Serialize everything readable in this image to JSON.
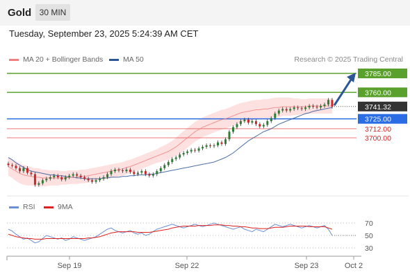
{
  "header": {
    "title": "Gold",
    "timeframe": "30 MIN"
  },
  "timestamp": "Tuesday, September 23, 2025 5:24:39 AM CET",
  "legend": {
    "bollinger": {
      "label": "MA 20 + Bollinger Bands",
      "color": "#f08080"
    },
    "ma50": {
      "label": "MA 50",
      "color": "#2c5596"
    },
    "credit": "Research © 2025 Trading Central"
  },
  "rsi_legend": {
    "rsi": {
      "label": "RSI",
      "color": "#6b8fd4"
    },
    "ma9": {
      "label": "9MA",
      "color": "#e01f1f"
    }
  },
  "chart_data": [
    {
      "type": "line",
      "name": "price",
      "x_ticks": [
        "Sep 19",
        "Sep 22",
        "Sep 23",
        "Oct 2"
      ],
      "price_levels": [
        {
          "label": "3785.00",
          "value": 3785,
          "kind": "target",
          "color": "#5aa02c"
        },
        {
          "label": "3760.00",
          "value": 3760,
          "kind": "resistance",
          "color": "#5aa02c"
        },
        {
          "label": "3741.32",
          "value": 3741.32,
          "kind": "last",
          "color": "#333333"
        },
        {
          "label": "3725.00",
          "value": 3725,
          "kind": "pivot",
          "color": "#2a6ce3"
        },
        {
          "label": "3712.00",
          "value": 3712,
          "kind": "support",
          "color": "#e01f1f"
        },
        {
          "label": "3700.00",
          "value": 3700,
          "kind": "support",
          "color": "#e01f1f"
        }
      ],
      "close": [
        3664,
        3663,
        3660,
        3656,
        3660,
        3654,
        3652,
        3638,
        3640,
        3644,
        3646,
        3648,
        3650,
        3648,
        3645,
        3648,
        3650,
        3652,
        3650,
        3648,
        3646,
        3644,
        3642,
        3644,
        3646,
        3648,
        3652,
        3656,
        3658,
        3657,
        3656,
        3658,
        3655,
        3652,
        3654,
        3656,
        3652,
        3650,
        3652,
        3656,
        3660,
        3664,
        3668,
        3672,
        3674,
        3678,
        3680,
        3682,
        3684,
        3683,
        3686,
        3688,
        3690,
        3689,
        3690,
        3694,
        3692,
        3698,
        3708,
        3714,
        3718,
        3722,
        3724,
        3720,
        3722,
        3718,
        3715,
        3717,
        3722,
        3726,
        3732,
        3736,
        3738,
        3736,
        3738,
        3740,
        3739,
        3738,
        3740,
        3742,
        3741,
        3740,
        3742,
        3744,
        3750,
        3741
      ],
      "ma50": [
        3674,
        3671,
        3667,
        3664,
        3661,
        3658,
        3656,
        3655,
        3654,
        3653,
        3652,
        3651,
        3651,
        3650,
        3650,
        3649,
        3648,
        3648,
        3647,
        3647,
        3646,
        3646,
        3646,
        3646,
        3646,
        3647,
        3647,
        3648,
        3648,
        3648,
        3649,
        3649,
        3650,
        3650,
        3651,
        3651,
        3651,
        3652,
        3652,
        3653,
        3654,
        3655,
        3656,
        3657,
        3658,
        3659,
        3660,
        3661,
        3662,
        3663,
        3664,
        3665,
        3666,
        3667,
        3668,
        3670,
        3672,
        3674,
        3677,
        3680,
        3684,
        3688,
        3692,
        3696,
        3699,
        3702,
        3705,
        3708,
        3710,
        3712,
        3715,
        3718,
        3720,
        3722,
        3724,
        3726,
        3728,
        3730,
        3732,
        3733,
        3735,
        3736,
        3737,
        3738,
        3739,
        3740
      ],
      "ma20": [
        3662,
        3659,
        3656,
        3653,
        3651,
        3650,
        3649,
        3648,
        3648,
        3647,
        3647,
        3647,
        3647,
        3647,
        3647,
        3647,
        3648,
        3648,
        3648,
        3649,
        3649,
        3650,
        3651,
        3652,
        3653,
        3654,
        3655,
        3656,
        3657,
        3658,
        3659,
        3661,
        3662,
        3664,
        3666,
        3668,
        3670,
        3672,
        3674,
        3676,
        3678,
        3680,
        3682,
        3685,
        3688,
        3692,
        3696,
        3700,
        3704,
        3708,
        3711,
        3714,
        3716,
        3718,
        3720,
        3722,
        3724,
        3725,
        3727,
        3729,
        3731,
        3733,
        3734,
        3735,
        3736,
        3737,
        3737,
        3738,
        3738,
        3739,
        3740,
        3740,
        3741,
        3741,
        3741,
        3741,
        3741,
        3741,
        3741,
        3742,
        3742,
        3742,
        3742,
        3742,
        3742,
        3742
      ],
      "bollinger_width": [
        12,
        12,
        13,
        13,
        13,
        13,
        12,
        12,
        12,
        11,
        11,
        10,
        10,
        10,
        9,
        9,
        9,
        9,
        9,
        9,
        9,
        9,
        9,
        9,
        9,
        9,
        9,
        9,
        9,
        9,
        9,
        9,
        9,
        9,
        9,
        9,
        9,
        9,
        9,
        9,
        10,
        10,
        11,
        11,
        12,
        13,
        13,
        13,
        13,
        13,
        13,
        13,
        13,
        13,
        13,
        13,
        13,
        13,
        13,
        13,
        13,
        13,
        13,
        13,
        13,
        13,
        13,
        13,
        13,
        13,
        13,
        13,
        12,
        12,
        12,
        11,
        11,
        10,
        10,
        10,
        10,
        10,
        10,
        10,
        10,
        10
      ],
      "y_range": [
        3630,
        3795
      ]
    },
    {
      "type": "line",
      "name": "rsi",
      "levels": [
        70,
        50,
        30
      ],
      "x_ticks": [
        "Sep 19",
        "Sep 22",
        "Sep 23",
        "Oct 2"
      ],
      "rsi": [
        60,
        57,
        52,
        48,
        44,
        46,
        42,
        38,
        40,
        45,
        50,
        48,
        46,
        44,
        46,
        42,
        44,
        48,
        46,
        44,
        42,
        44,
        46,
        48,
        52,
        56,
        60,
        62,
        58,
        56,
        54,
        56,
        58,
        54,
        52,
        54,
        50,
        52,
        56,
        60,
        62,
        64,
        66,
        68,
        66,
        64,
        62,
        64,
        66,
        68,
        66,
        64,
        66,
        68,
        70,
        68,
        66,
        64,
        62,
        60,
        62,
        64,
        60,
        58,
        56,
        60,
        58,
        56,
        60,
        64,
        68,
        66,
        64,
        66,
        68,
        66,
        64,
        62,
        64,
        66,
        64,
        62,
        64,
        66,
        60,
        50
      ],
      "ma9": [
        52,
        50,
        48,
        47,
        46,
        45,
        45,
        44,
        44,
        44,
        45,
        45,
        45,
        45,
        45,
        45,
        45,
        45,
        45,
        45,
        45,
        46,
        46,
        47,
        48,
        50,
        52,
        54,
        55,
        56,
        56,
        56,
        56,
        56,
        55,
        55,
        55,
        55,
        56,
        57,
        58,
        59,
        60,
        62,
        63,
        64,
        65,
        65,
        65,
        65,
        66,
        66,
        66,
        66,
        67,
        67,
        67,
        66,
        66,
        65,
        65,
        64,
        64,
        63,
        62,
        62,
        61,
        61,
        61,
        62,
        63,
        63,
        63,
        64,
        65,
        65,
        65,
        65,
        65,
        64,
        64,
        64,
        64,
        64,
        62,
        60
      ],
      "y_range": [
        20,
        80
      ]
    }
  ]
}
